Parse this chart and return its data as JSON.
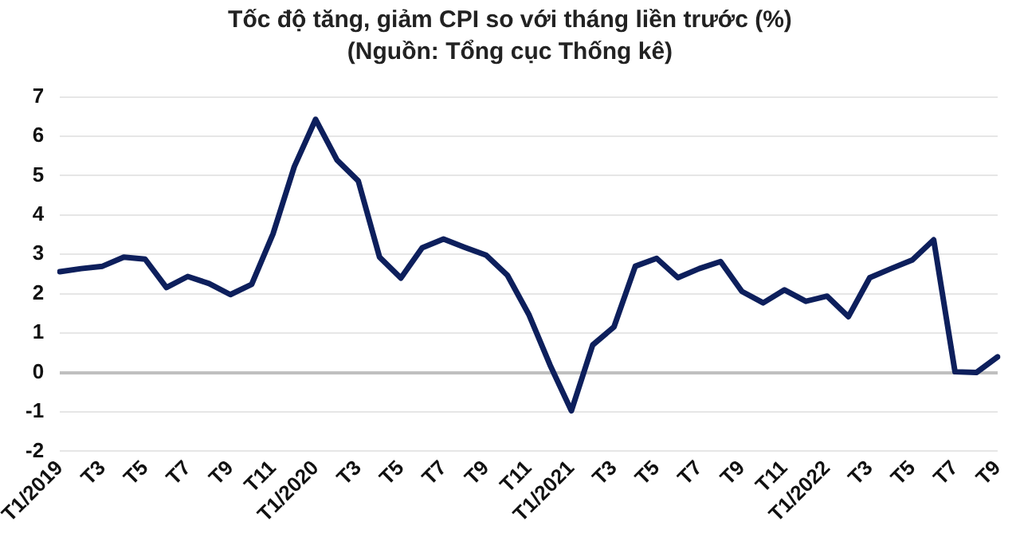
{
  "chart_data": {
    "type": "line",
    "title": "Tốc độ tăng, giảm CPI so với tháng liền trước (%)",
    "subtitle": "(Nguồn: Tổng cục Thống kê)",
    "categories": [
      "T1/2019",
      null,
      "T3",
      null,
      "T5",
      null,
      "T7",
      null,
      "T9",
      null,
      "T11",
      null,
      "T1/2020",
      null,
      "T3",
      null,
      "T5",
      null,
      "T7",
      null,
      "T9",
      null,
      "T11",
      null,
      "T1/2021",
      null,
      "T3",
      null,
      "T5",
      null,
      "T7",
      null,
      "T9",
      null,
      "T11",
      null,
      "T1/2022",
      null,
      "T3",
      null,
      "T5",
      null,
      "T7",
      null,
      "T9"
    ],
    "series": [
      {
        "color": "#0d1f5c",
        "values": [
          2.56,
          2.64,
          2.7,
          2.93,
          2.88,
          2.16,
          2.44,
          2.26,
          1.98,
          2.24,
          3.52,
          5.23,
          6.43,
          5.4,
          4.87,
          2.93,
          2.4,
          3.17,
          3.39,
          3.18,
          2.98,
          2.47,
          1.48,
          0.19,
          -0.97,
          0.7,
          1.16,
          2.7,
          2.9,
          2.41,
          2.64,
          2.82,
          2.06,
          1.77,
          2.1,
          1.81,
          1.94,
          1.42,
          2.41,
          2.64,
          2.86,
          3.37,
          0.02,
          0,
          0.4
        ]
      }
    ],
    "ylim": [
      -2,
      7
    ],
    "yticks": [
      -2,
      -1,
      0,
      1,
      2,
      3,
      4,
      5,
      6,
      7
    ],
    "grid": "y",
    "legend": false,
    "marker": "none",
    "line_style": "solid"
  }
}
